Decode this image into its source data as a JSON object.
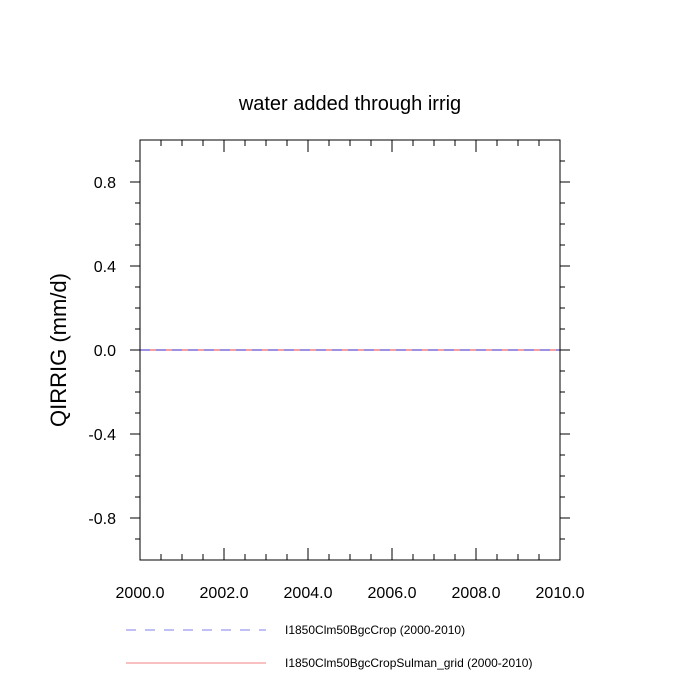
{
  "chart_data": {
    "type": "line",
    "title": "water added through irrig",
    "xlabel": "",
    "ylabel": "QIRRIG  (mm/d)",
    "xlim": [
      2000,
      2010
    ],
    "ylim": [
      -1,
      1
    ],
    "x_ticks": [
      2000,
      2002,
      2004,
      2006,
      2008,
      2010
    ],
    "x_tick_labels": [
      "2000.0",
      "2002.0",
      "2004.0",
      "2006.0",
      "2008.0",
      "2010.0"
    ],
    "y_ticks": [
      -0.8,
      -0.4,
      0.0,
      0.4,
      0.8
    ],
    "y_tick_labels": [
      "-0.8",
      "-0.4",
      "0.0",
      "0.4",
      "0.8"
    ],
    "grid": false,
    "legend_position": "bottom",
    "series": [
      {
        "name": "I1850Clm50BgcCrop (2000-2010)",
        "color": "#8080ee",
        "style": "dashed",
        "x": [
          2000,
          2001,
          2002,
          2003,
          2004,
          2005,
          2006,
          2007,
          2008,
          2009,
          2010
        ],
        "y": [
          0,
          0,
          0,
          0,
          0,
          0,
          0,
          0,
          0,
          0,
          0
        ]
      },
      {
        "name": "I1850Clm50BgcCropSulman_grid (2000-2010)",
        "color": "#f08080",
        "style": "solid",
        "x": [
          2000,
          2001,
          2002,
          2003,
          2004,
          2005,
          2006,
          2007,
          2008,
          2009,
          2010
        ],
        "y": [
          0,
          0,
          0,
          0,
          0,
          0,
          0,
          0,
          0,
          0,
          0
        ]
      }
    ]
  }
}
